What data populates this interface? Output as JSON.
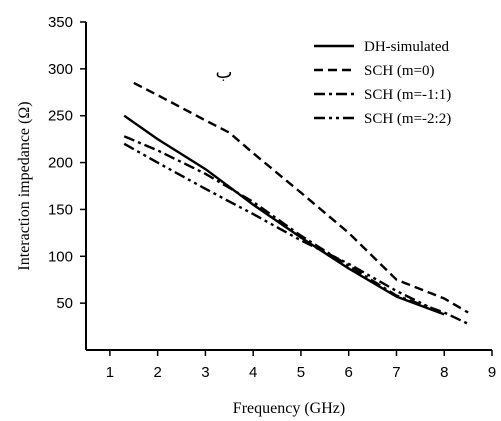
{
  "chart_data": {
    "type": "line",
    "xlabel": "Frequency (GHz)",
    "ylabel": "Interaction impedance (Ω)",
    "xlim": [
      0.5,
      9
    ],
    "ylim": [
      0,
      350
    ],
    "xticks": [
      1,
      2,
      3,
      4,
      5,
      6,
      7,
      8,
      9
    ],
    "yticks": [
      50,
      100,
      150,
      200,
      250,
      300,
      350
    ],
    "annotation": "ب",
    "legend_position": "top-right",
    "grid": false,
    "series": [
      {
        "name": "DH-simulated",
        "dash": "solid",
        "x": [
          1.3,
          2,
          3,
          4,
          5,
          6,
          7,
          8
        ],
        "y": [
          250,
          225,
          193,
          155,
          120,
          87,
          57,
          38
        ]
      },
      {
        "name": "SCH (m=0)",
        "dash": "dash",
        "x": [
          1.5,
          2,
          3,
          3.5,
          4,
          5,
          6,
          7,
          8,
          8.5
        ],
        "y": [
          285,
          272,
          245,
          232,
          210,
          168,
          125,
          75,
          55,
          40
        ]
      },
      {
        "name": "SCH (m=-1:1)",
        "dash": "dashdot",
        "x": [
          1.3,
          2,
          3,
          4,
          5,
          6,
          7,
          8,
          8.5
        ],
        "y": [
          228,
          213,
          188,
          158,
          122,
          90,
          58,
          40,
          28
        ]
      },
      {
        "name": "SCH (m=-2:2)",
        "dash": "dashdotdot",
        "x": [
          1.3,
          2,
          3,
          4,
          5,
          6,
          7,
          8
        ],
        "y": [
          220,
          200,
          172,
          145,
          117,
          92,
          63,
          38
        ]
      }
    ]
  }
}
